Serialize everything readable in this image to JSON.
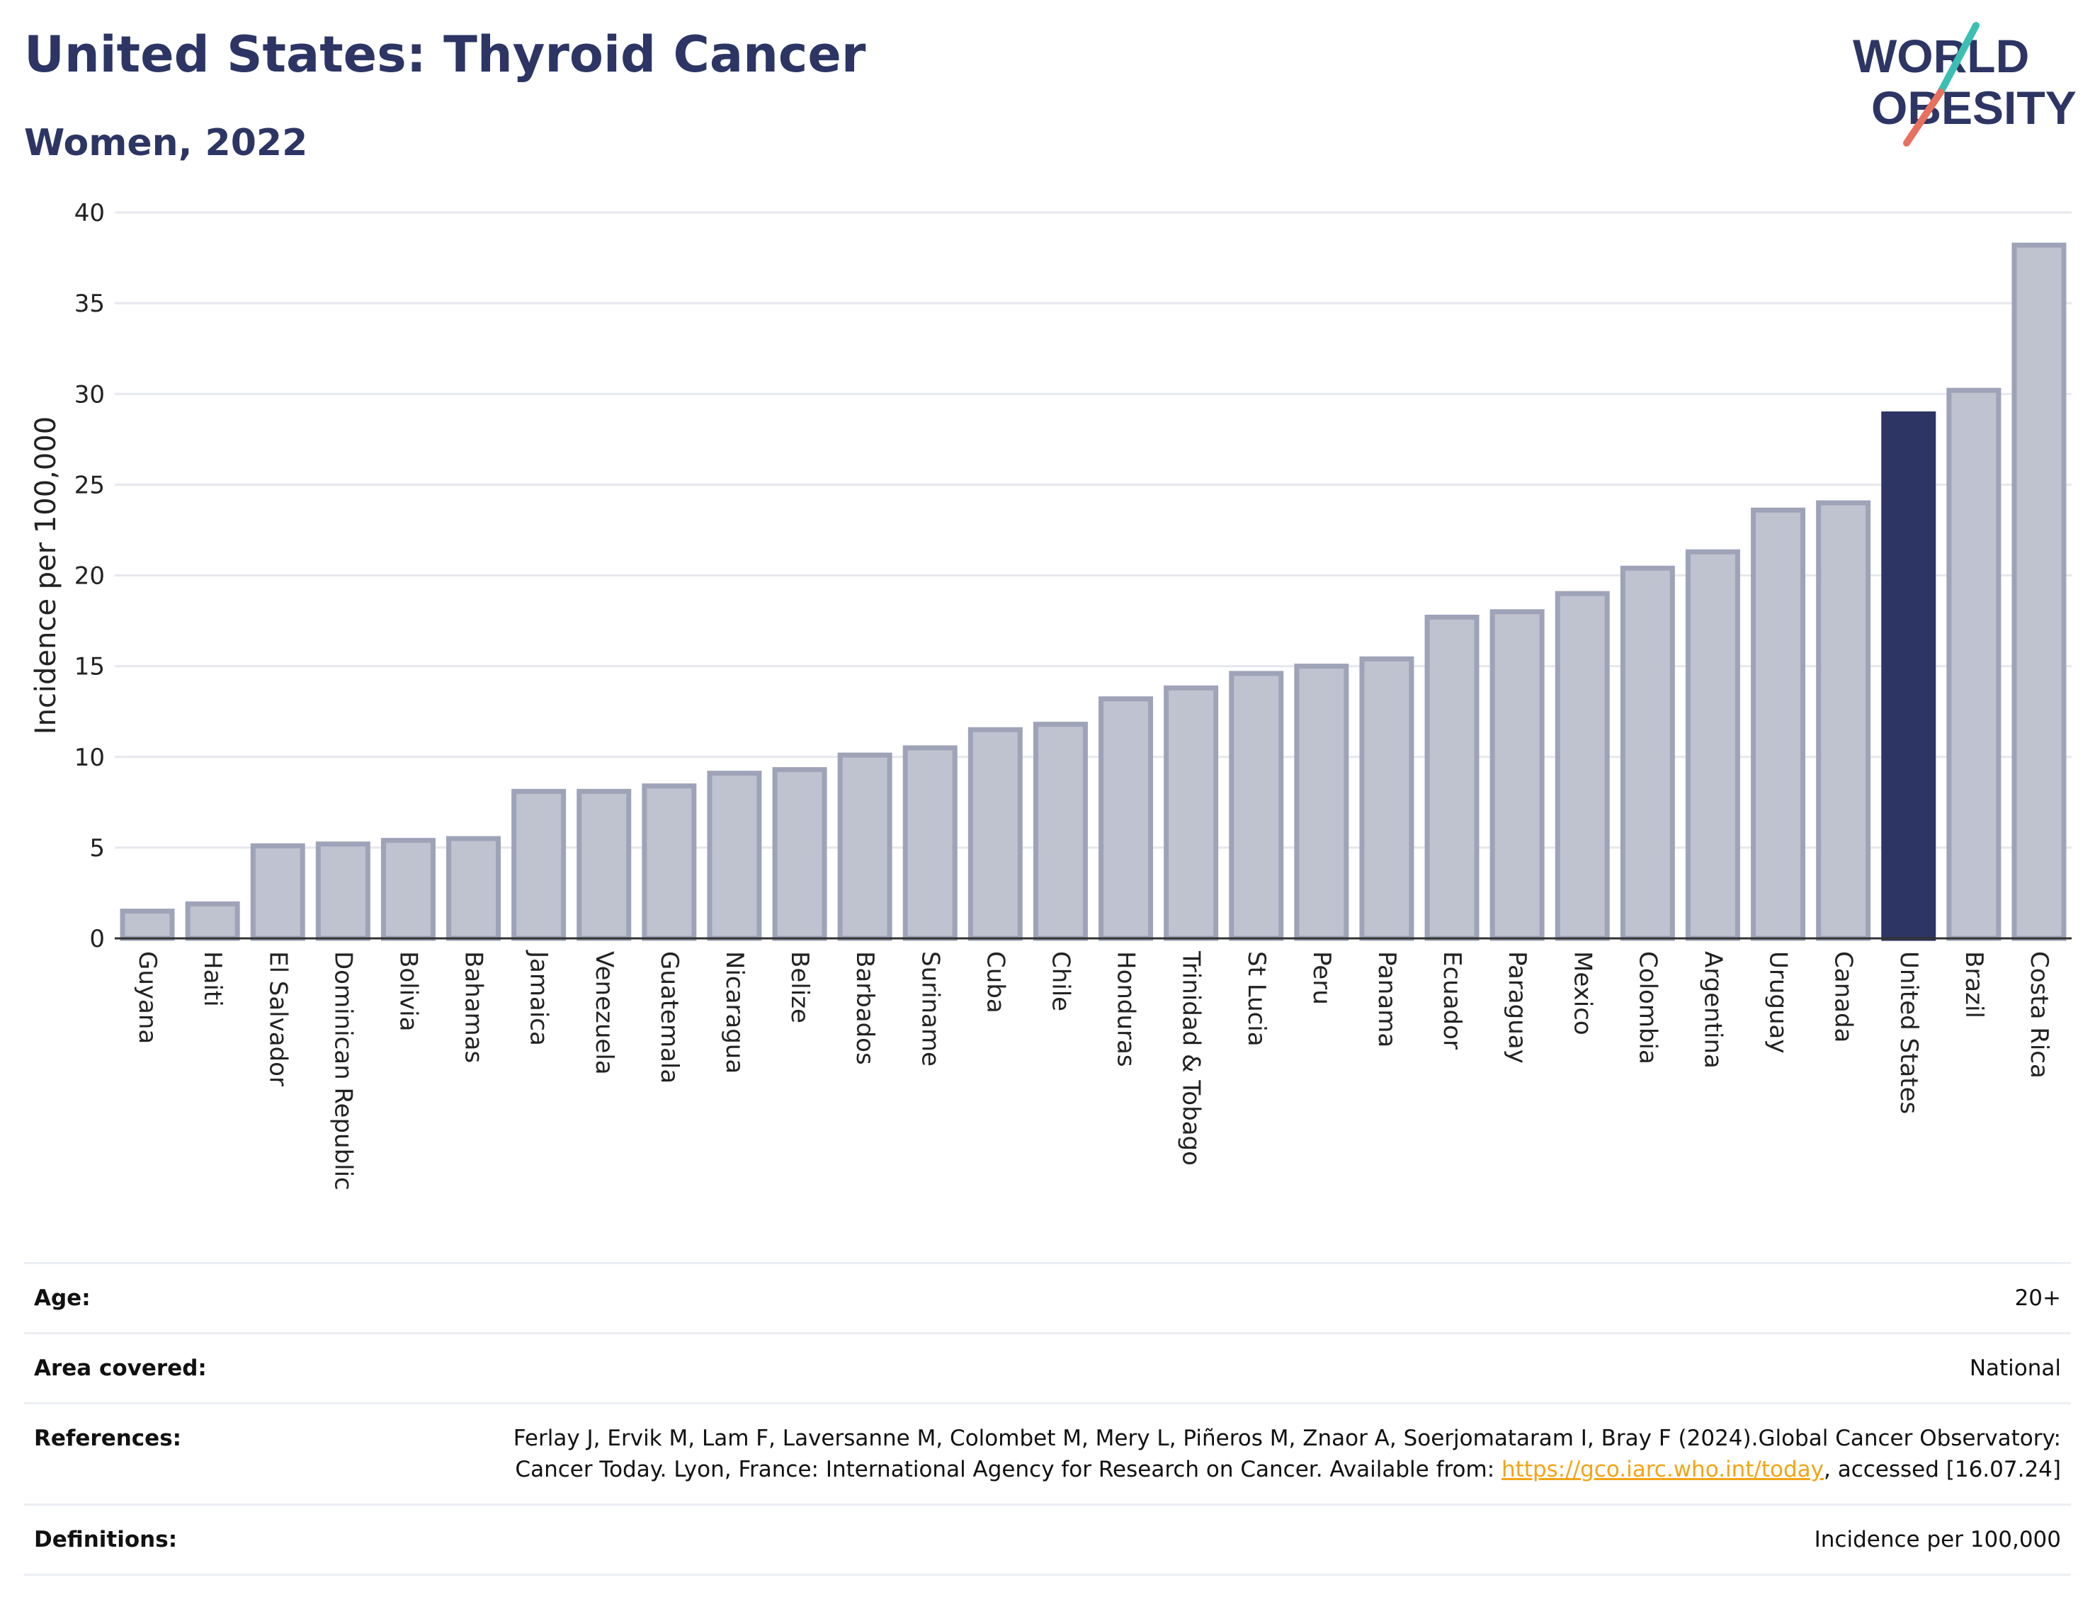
{
  "header": {
    "title": "United States: Thyroid Cancer",
    "subtitle": "Women, 2022"
  },
  "logo": {
    "line1": "WORLD",
    "line2": "OBESITY",
    "colors": {
      "text": "#2c3563",
      "slash_teal": "#3bbfb2",
      "slash_coral": "#e8705f"
    }
  },
  "chart_data": {
    "type": "bar",
    "ylabel": "Incidence per 100,000",
    "xlabel": "",
    "ylim": [
      0,
      40
    ],
    "yticks": [
      0,
      5,
      10,
      15,
      20,
      25,
      30,
      35,
      40
    ],
    "grid": true,
    "highlight": "United States",
    "colors": {
      "bar": "#bfc2cf",
      "bar_edge": "#9ea3b8",
      "highlight": "#2c3563",
      "grid": "#e6e8ee"
    },
    "categories": [
      "Guyana",
      "Haiti",
      "El Salvador",
      "Dominican Republic",
      "Bolivia",
      "Bahamas",
      "Jamaica",
      "Venezuela",
      "Guatemala",
      "Nicaragua",
      "Belize",
      "Barbados",
      "Suriname",
      "Cuba",
      "Chile",
      "Honduras",
      "Trinidad & Tobago",
      "St Lucia",
      "Peru",
      "Panama",
      "Ecuador",
      "Paraguay",
      "Mexico",
      "Colombia",
      "Argentina",
      "Uruguay",
      "Canada",
      "United States",
      "Brazil",
      "Costa Rica"
    ],
    "values": [
      1.5,
      1.9,
      5.1,
      5.2,
      5.4,
      5.5,
      8.1,
      8.1,
      8.4,
      9.1,
      9.3,
      10.1,
      10.5,
      11.5,
      11.8,
      13.2,
      13.8,
      14.6,
      15.0,
      15.4,
      17.7,
      18.0,
      19.0,
      20.4,
      21.3,
      23.6,
      24.0,
      28.9,
      30.2,
      38.2
    ]
  },
  "meta": {
    "age_label": "Age:",
    "age_value": "20+",
    "area_label": "Area covered:",
    "area_value": "National",
    "references_label": "References:",
    "references_text": "Ferlay J, Ervik M, Lam F, Laversanne M, Colombet M, Mery L, Piñeros M, Znaor A, Soerjomataram I, Bray F (2024).Global Cancer Observatory: Cancer Today. Lyon, France: International Agency for Research on Cancer. Available from: ",
    "references_link": "https://gco.iarc.who.int/today",
    "references_tail": ", accessed [16.07.24]",
    "definitions_label": "Definitions:",
    "definitions_value": "Incidence per 100,000"
  }
}
